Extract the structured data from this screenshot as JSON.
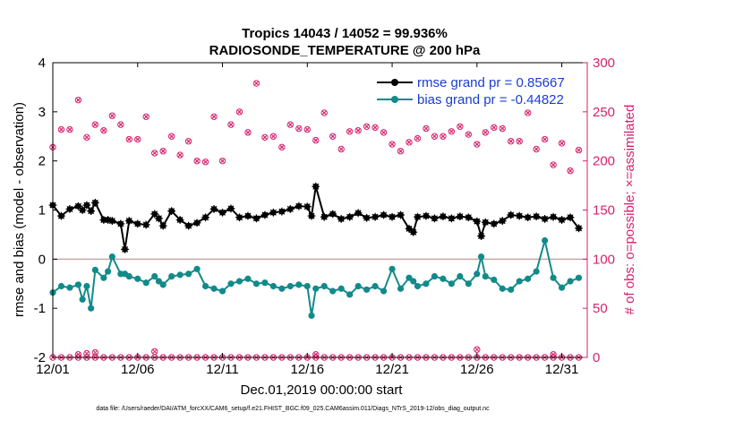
{
  "chart_data": {
    "type": "line",
    "title": "Tropics 14043 / 14052 = 99.936%",
    "subtitle": "RADIOSONDE_TEMPERATURE @ 200 hPa",
    "xlabel": "Dec.01,2019 00:00:00 start",
    "ylabel": "rmse and bias (model - observation)",
    "ylabel_right": "# of obs: o=possible; ×=assimilated",
    "xlim": [
      0,
      31.5
    ],
    "ylim": [
      -2,
      4
    ],
    "ylim_right": [
      0,
      300
    ],
    "x_ticks": [
      0,
      5,
      10,
      15,
      20,
      25,
      30
    ],
    "x_tick_labels": [
      "12/01",
      "12/06",
      "12/11",
      "12/16",
      "12/21",
      "12/26",
      "12/31"
    ],
    "y_ticks": [
      -2,
      -1,
      0,
      1,
      2,
      3,
      4
    ],
    "y_tick_labels": [
      "-2",
      "-1",
      "0",
      "1",
      "2",
      "3",
      "4"
    ],
    "y_right_ticks": [
      0,
      50,
      100,
      150,
      200,
      250,
      300
    ],
    "y_right_tick_labels": [
      "0",
      "50",
      "100",
      "150",
      "200",
      "250",
      "300"
    ],
    "zero_line": 0,
    "colors": {
      "rmse": "#000000",
      "bias": "#138a8a",
      "count": "#d6226e",
      "zero": "#c8a8a8",
      "legend_text": "#1a3cd6"
    },
    "legend": [
      {
        "name": "rmse grand pr = 0.85667",
        "series": "rmse"
      },
      {
        "name": "bias grand pr = -0.44822",
        "series": "bias"
      }
    ],
    "series": [
      {
        "name": "rmse",
        "x": [
          0,
          0.5,
          1,
          1.5,
          1.75,
          2,
          2.25,
          2.5,
          3,
          3.25,
          3.5,
          4,
          4.25,
          4.5,
          5,
          5.5,
          6,
          6.25,
          6.5,
          7,
          7.5,
          8,
          8.5,
          9,
          9.5,
          10,
          10.5,
          11,
          11.5,
          12,
          12.5,
          13,
          13.5,
          14,
          14.5,
          15,
          15.25,
          15.5,
          16,
          16.5,
          17,
          17.5,
          18,
          18.5,
          19,
          19.5,
          20,
          20.5,
          21,
          21.25,
          21.5,
          22,
          22.5,
          23,
          23.5,
          24,
          24.5,
          25,
          25.25,
          25.5,
          26,
          26.5,
          27,
          27.5,
          28,
          28.5,
          29,
          29.5,
          30,
          30.5,
          31
        ],
        "values": [
          1.1,
          0.88,
          1.02,
          1.08,
          1.0,
          1.1,
          0.98,
          1.15,
          0.8,
          0.8,
          0.78,
          0.72,
          0.2,
          0.78,
          0.72,
          0.7,
          0.92,
          0.83,
          0.68,
          0.98,
          0.8,
          0.68,
          0.74,
          0.85,
          1.02,
          0.95,
          1.03,
          0.85,
          0.88,
          0.83,
          0.9,
          0.95,
          0.97,
          1.02,
          1.08,
          1.07,
          0.88,
          1.48,
          0.86,
          0.92,
          0.82,
          0.86,
          0.94,
          0.84,
          0.86,
          0.9,
          0.86,
          0.9,
          0.62,
          0.55,
          0.86,
          0.88,
          0.83,
          0.87,
          0.83,
          0.87,
          0.85,
          0.77,
          0.47,
          0.75,
          0.72,
          0.78,
          0.9,
          0.88,
          0.85,
          0.87,
          0.82,
          0.86,
          0.8,
          0.85,
          0.63
        ]
      },
      {
        "name": "bias",
        "x": [
          0,
          0.5,
          1,
          1.5,
          1.75,
          2,
          2.25,
          2.5,
          3,
          3.25,
          3.5,
          4,
          4.25,
          4.5,
          5,
          5.5,
          6,
          6.25,
          6.5,
          7,
          7.5,
          8,
          8.5,
          9,
          9.5,
          10,
          10.5,
          11,
          11.5,
          12,
          12.5,
          13,
          13.5,
          14,
          14.5,
          15,
          15.25,
          15.5,
          16,
          16.5,
          17,
          17.5,
          18,
          18.5,
          19,
          19.5,
          20,
          20.5,
          21,
          21.25,
          21.5,
          22,
          22.5,
          23,
          23.5,
          24,
          24.5,
          25,
          25.25,
          25.5,
          26,
          26.5,
          27,
          27.5,
          28,
          28.5,
          29,
          29.5,
          30,
          30.5,
          31
        ],
        "values": [
          -0.68,
          -0.55,
          -0.58,
          -0.52,
          -0.82,
          -0.55,
          -1.0,
          -0.22,
          -0.38,
          -0.25,
          0.05,
          -0.3,
          -0.3,
          -0.35,
          -0.4,
          -0.48,
          -0.35,
          -0.45,
          -0.52,
          -0.35,
          -0.32,
          -0.3,
          -0.2,
          -0.55,
          -0.6,
          -0.65,
          -0.5,
          -0.45,
          -0.4,
          -0.5,
          -0.48,
          -0.55,
          -0.6,
          -0.55,
          -0.52,
          -0.55,
          -1.15,
          -0.6,
          -0.55,
          -0.65,
          -0.6,
          -0.72,
          -0.55,
          -0.62,
          -0.55,
          -0.65,
          -0.2,
          -0.6,
          -0.38,
          -0.45,
          -0.55,
          -0.5,
          -0.35,
          -0.4,
          -0.5,
          -0.35,
          -0.5,
          -0.3,
          0.05,
          -0.35,
          -0.42,
          -0.6,
          -0.62,
          -0.45,
          -0.4,
          -0.25,
          0.38,
          -0.38,
          -0.58,
          -0.45,
          -0.38
        ]
      },
      {
        "name": "possible",
        "x": [
          0,
          0.5,
          1,
          1.5,
          2,
          2.5,
          3,
          3.5,
          4,
          4.5,
          5,
          5.5,
          6,
          6.5,
          7,
          7.5,
          8,
          8.5,
          9,
          9.5,
          10,
          10.5,
          11,
          11.5,
          12,
          12.5,
          13,
          13.5,
          14,
          14.5,
          15,
          15.5,
          16,
          16.5,
          17,
          17.5,
          18,
          18.5,
          19,
          19.5,
          20,
          20.5,
          21,
          21.5,
          22,
          22.5,
          23,
          23.5,
          24,
          24.5,
          25,
          25.5,
          26,
          26.5,
          27,
          27.5,
          28,
          28.5,
          29,
          29.5,
          30,
          30.5,
          31
        ],
        "values": [
          214,
          232,
          232,
          262,
          224,
          237,
          231,
          246,
          237,
          222,
          222,
          245,
          208,
          210,
          225,
          206,
          220,
          200,
          199,
          245,
          200,
          237,
          250,
          229,
          279,
          224,
          225,
          214,
          237,
          233,
          232,
          221,
          249,
          225,
          212,
          230,
          231,
          235,
          234,
          229,
          217,
          210,
          219,
          223,
          233,
          225,
          225,
          230,
          235,
          227,
          217,
          229,
          234,
          233,
          220,
          220,
          249,
          212,
          222,
          196,
          218,
          190,
          211
        ]
      },
      {
        "name": "assimilated",
        "x": [
          0,
          0.5,
          1,
          1.5,
          2,
          2.5,
          3,
          3.5,
          4,
          4.5,
          5,
          5.5,
          6,
          6.5,
          7,
          7.5,
          8,
          8.5,
          9,
          9.5,
          10,
          10.5,
          11,
          11.5,
          12,
          12.5,
          13,
          13.5,
          14,
          14.5,
          15,
          15.5,
          16,
          16.5,
          17,
          17.5,
          18,
          18.5,
          19,
          19.5,
          20,
          20.5,
          21,
          21.5,
          22,
          22.5,
          23,
          23.5,
          24,
          24.5,
          25,
          25.5,
          26,
          26.5,
          27,
          27.5,
          28,
          28.5,
          29,
          29.5,
          30,
          30.5,
          31
        ],
        "values": [
          214,
          232,
          232,
          262,
          224,
          237,
          231,
          246,
          237,
          222,
          222,
          245,
          208,
          210,
          225,
          206,
          220,
          200,
          199,
          245,
          200,
          237,
          250,
          229,
          279,
          224,
          225,
          214,
          237,
          233,
          232,
          221,
          249,
          225,
          212,
          230,
          231,
          235,
          234,
          229,
          217,
          210,
          219,
          223,
          233,
          225,
          225,
          230,
          235,
          227,
          217,
          229,
          234,
          233,
          220,
          220,
          249,
          212,
          222,
          196,
          218,
          190,
          211
        ]
      },
      {
        "name": "rejected",
        "x": [
          0,
          0.5,
          1,
          1.5,
          2,
          2.5,
          3,
          3.5,
          4,
          4.5,
          5,
          5.5,
          6,
          6.5,
          7,
          7.5,
          8,
          8.5,
          9,
          9.5,
          10,
          10.5,
          11,
          11.5,
          12,
          12.5,
          13,
          13.5,
          14,
          14.5,
          15,
          15.5,
          16,
          16.5,
          17,
          17.5,
          18,
          18.5,
          19,
          19.5,
          20,
          20.5,
          21,
          21.5,
          22,
          22.5,
          23,
          23.5,
          24,
          24.5,
          25,
          25.5,
          26,
          26.5,
          27,
          27.5,
          28,
          28.5,
          29,
          29.5,
          30,
          30.5,
          31
        ],
        "values": [
          0,
          0,
          0,
          0,
          0,
          0,
          0,
          0,
          0,
          0,
          0,
          0,
          0,
          0,
          0,
          0,
          0,
          0,
          0,
          0,
          0,
          0,
          0,
          0,
          0,
          0,
          0,
          0,
          0,
          0,
          0,
          0,
          0,
          0,
          0,
          0,
          0,
          0,
          0,
          0,
          0,
          0,
          0,
          0,
          0,
          0,
          0,
          0,
          0,
          0,
          0,
          0,
          0,
          0,
          0,
          0,
          0,
          0,
          0,
          0,
          0,
          0,
          0
        ],
        "raised_x": [
          1.5,
          2,
          2.5,
          6,
          15.5,
          25,
          29.5
        ],
        "raised_values": [
          3,
          4,
          5,
          6,
          3,
          8,
          3
        ]
      }
    ],
    "footnote": "data file: /Users/raeder/DAI/ATM_forcXX/CAM6_setup/f.e21.FHIST_BGC.f09_025.CAM6assim.011/Diags_NTrS_2019-12/obs_diag_output.nc"
  }
}
